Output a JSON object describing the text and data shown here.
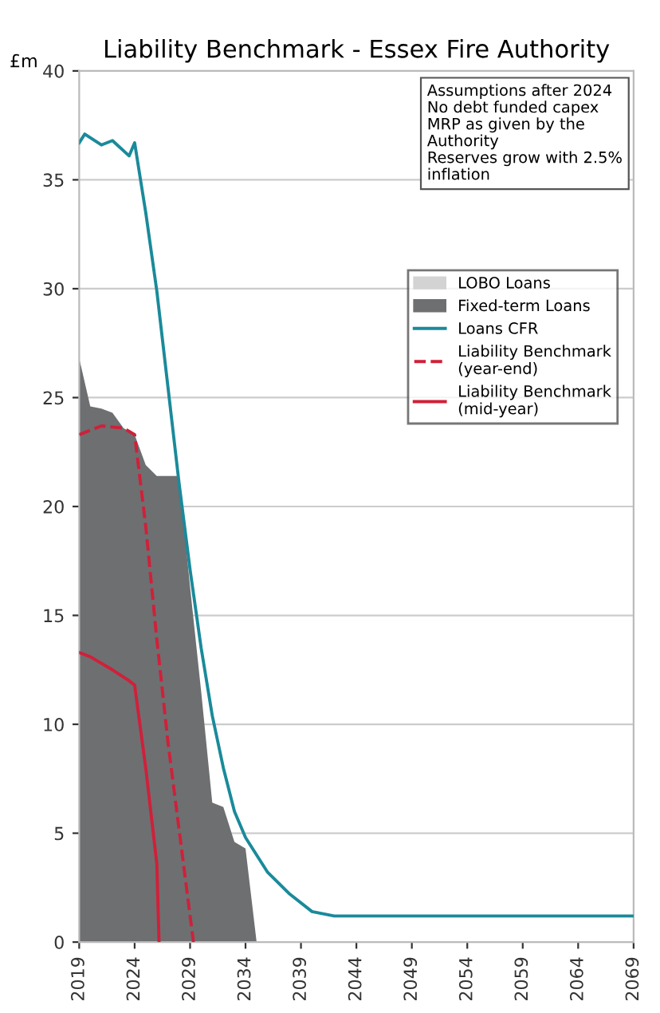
{
  "chart_data": {
    "type": "area",
    "title": "Liability Benchmark - Essex Fire Authority",
    "ylabel": "£m",
    "xlim": [
      2019,
      2069
    ],
    "xticks": [
      2019,
      2024,
      2029,
      2034,
      2039,
      2044,
      2049,
      2054,
      2059,
      2064,
      2069
    ],
    "ylim": [
      0,
      40
    ],
    "yticks": [
      0,
      5,
      10,
      15,
      20,
      25,
      30,
      35,
      40
    ],
    "grid": "y",
    "legend": "top right",
    "annotations": [
      "Assumptions after 2024\nNo debt funded capex\nMRP as given by the\nAuthority\nReserves grow with 2.5%\ninflation"
    ],
    "series": [
      {
        "name": "LOBO Loans",
        "color": "#d3d3d3"
      },
      {
        "name": "Fixed-term Loans",
        "color": "#6e6f71",
        "x": [
          2019,
          2020,
          2021,
          2022,
          2023,
          2024,
          2025,
          2026,
          2027,
          2028,
          2029,
          2030,
          2031,
          2032,
          2033,
          2034,
          2035
        ],
        "values": [
          26.8,
          24.6,
          24.5,
          24.3,
          23.6,
          23.3,
          21.9,
          21.4,
          21.4,
          21.4,
          16.3,
          11.5,
          6.4,
          6.2,
          4.6,
          4.3,
          0
        ]
      },
      {
        "name": "Loans CFR",
        "type": "line",
        "color": "#1a8a9a",
        "line_style": "solid",
        "x": [
          2019,
          2019.5,
          2021,
          2022,
          2023.5,
          2024,
          2025,
          2026,
          2027,
          2028,
          2029,
          2030,
          2031,
          2032,
          2033,
          2034,
          2036,
          2038,
          2040,
          2042,
          2069
        ],
        "values": [
          36.7,
          37.1,
          36.6,
          36.8,
          36.1,
          36.7,
          33.5,
          29.9,
          25.5,
          21.1,
          17.1,
          13.5,
          10.4,
          8.0,
          6.0,
          4.8,
          3.2,
          2.2,
          1.4,
          1.2,
          1.2
        ]
      },
      {
        "name": "Liability Benchmark\n(year-end)",
        "type": "line",
        "color": "#d0203a",
        "line_style": "dashed",
        "x": [
          2019,
          2021,
          2023,
          2024,
          2025,
          2026,
          2027,
          2028,
          2029,
          2029.3
        ],
        "values": [
          23.3,
          23.7,
          23.6,
          23.3,
          19.1,
          13.9,
          9.2,
          5.2,
          1.2,
          0
        ]
      },
      {
        "name": "Liability Benchmark\n(mid-year)",
        "type": "line",
        "color": "#d0203a",
        "line_style": "solid",
        "x": [
          2019,
          2020,
          2022,
          2023.5,
          2024,
          2025,
          2026,
          2026.2
        ],
        "values": [
          13.3,
          13.1,
          12.5,
          12.0,
          11.8,
          8.0,
          3.6,
          0
        ]
      }
    ]
  }
}
